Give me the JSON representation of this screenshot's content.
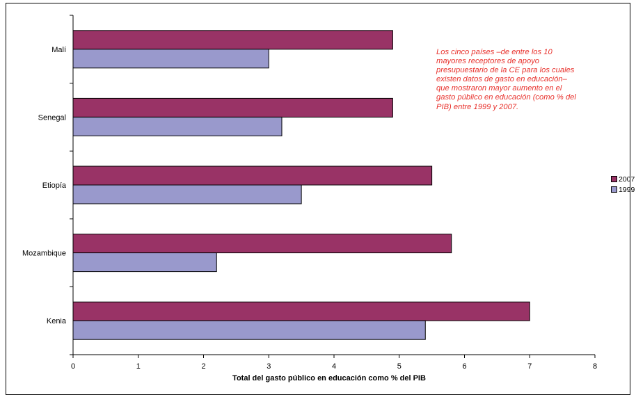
{
  "chart_data": {
    "type": "bar",
    "orientation": "horizontal",
    "categories": [
      "Malí",
      "Senegal",
      "Etiopía",
      "Mozambique",
      "Kenia"
    ],
    "series": [
      {
        "name": "2007",
        "color": "#993366",
        "values": [
          4.9,
          4.9,
          5.5,
          5.8,
          7.0
        ]
      },
      {
        "name": "1999",
        "color": "#9999cc",
        "values": [
          3.0,
          3.2,
          3.5,
          2.2,
          5.4
        ]
      }
    ],
    "xlabel": "Total del gasto público en educación como % del PIB",
    "xlim": [
      0,
      8
    ],
    "xticks": [
      "0",
      "1",
      "2",
      "3",
      "4",
      "5",
      "6",
      "7",
      "8"
    ],
    "grid": false,
    "legend_position": "right",
    "annotation": "Los cinco países –de entre los 10 mayores receptores de apoyo presupuestario de la CE para los cuales existen datos de gasto en educación– que mostraron mayor aumento en el gasto público en educación (como % del PIB) entre 1999 y 2007."
  }
}
